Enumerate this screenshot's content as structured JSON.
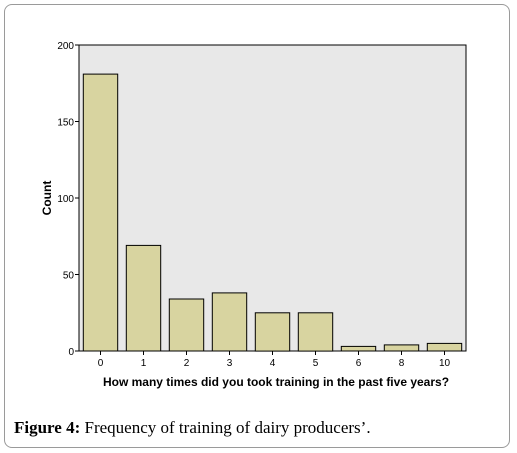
{
  "caption": {
    "label": "Figure 4:",
    "text": " Frequency of training of dairy producers’."
  },
  "chart_data": {
    "type": "bar",
    "title": "",
    "xlabel": "How many times did you took training in the past five years?",
    "ylabel": "Count",
    "categories": [
      "0",
      "1",
      "2",
      "3",
      "4",
      "5",
      "6",
      "8",
      "10"
    ],
    "values": [
      181,
      69,
      34,
      38,
      25,
      25,
      3,
      4,
      5
    ],
    "ylim": [
      0,
      200
    ],
    "yticks": [
      0,
      50,
      100,
      150,
      200
    ],
    "grid": false,
    "colors": {
      "bar_fill": "#d8d4a0",
      "bar_stroke": "#000000",
      "plot_background": "#e8e8e8"
    }
  }
}
